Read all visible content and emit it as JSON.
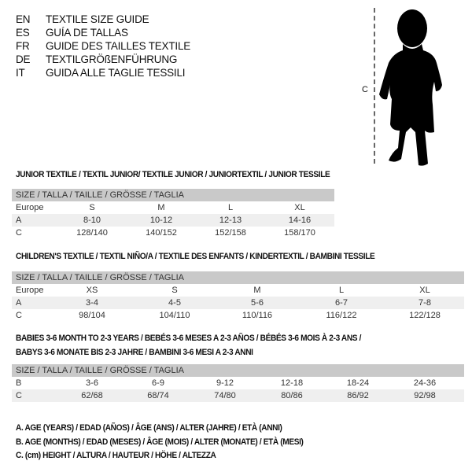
{
  "languages": [
    {
      "code": "EN",
      "text": "TEXTILE SIZE GUIDE"
    },
    {
      "code": "ES",
      "text": "GUÍA DE TALLAS"
    },
    {
      "code": "FR",
      "text": "GUIDE DES TAILLES TEXTILE"
    },
    {
      "code": "DE",
      "text": "TEXTILGRÖßENFÜHRUNG"
    },
    {
      "code": "IT",
      "text": "GUIDA ALLE TAGLIE TESSILI"
    }
  ],
  "figure": {
    "measure_label": "C",
    "icon": "baby-silhouette"
  },
  "junior": {
    "title": "JUNIOR TEXTILE / TEXTIL JUNIOR/ TEXTILE JUNIOR / JUNIORTEXTIL / JUNIOR TESSILE",
    "header": "SIZE / TALLA / TAILLE / GRÖSSE / TAGLIA",
    "rows": [
      {
        "label": "Europe",
        "values": [
          "S",
          "M",
          "L",
          "XL"
        ]
      },
      {
        "label": "A",
        "values": [
          "8-10",
          "10-12",
          "12-13",
          "14-16"
        ]
      },
      {
        "label": "C",
        "values": [
          "128/140",
          "140/152",
          "152/158",
          "158/170"
        ]
      }
    ]
  },
  "children": {
    "title": "CHILDREN'S TEXTILE / TEXTIL NIÑO/A / TEXTILE DES ENFANTS / KINDERTEXTIL / BAMBINI TESSILE",
    "header": "SIZE / TALLA / TAILLE / GRÖSSE / TAGLIA",
    "rows": [
      {
        "label": "Europe",
        "values": [
          "XS",
          "S",
          "M",
          "L",
          "XL"
        ]
      },
      {
        "label": "A",
        "values": [
          "3-4",
          "4-5",
          "5-6",
          "6-7",
          "7-8"
        ]
      },
      {
        "label": "C",
        "values": [
          "98/104",
          "104/110",
          "110/116",
          "116/122",
          "122/128"
        ]
      }
    ]
  },
  "babies": {
    "title_line1": "BABIES 3-6 MONTH TO 2-3 YEARS / BEBÉS 3-6 MESES A 2-3 AÑOS / BÉBÉS 3-6 MOIS À 2-3 ANS /",
    "title_line2": "BABYS 3-6 MONATE BIS 2-3 JAHRE / BAMBINI 3-6 MESI A 2-3 ANNI",
    "header": "SIZE / TALLA / TAILLE / GRÖSSE / TAGLIA",
    "rows": [
      {
        "label": "B",
        "values": [
          "3-6",
          "6-9",
          "9-12",
          "12-18",
          "18-24",
          "24-36"
        ]
      },
      {
        "label": "C",
        "values": [
          "62/68",
          "68/74",
          "74/80",
          "80/86",
          "86/92",
          "92/98"
        ]
      }
    ]
  },
  "legend": [
    "A. AGE (YEARS) / EDAD (AÑOS) / ÂGE (ANS) / ALTER (JAHRE) / ETÀ (ANNI)",
    "B. AGE (MONTHS) / EDAD (MESES) / ÂGE (MOIS) / ALTER (MONATE) / ETÀ (MESI)",
    "C. (cm) HEIGHT / ALTURA / HAUTEUR / HÖHE / ALTEZZA"
  ]
}
